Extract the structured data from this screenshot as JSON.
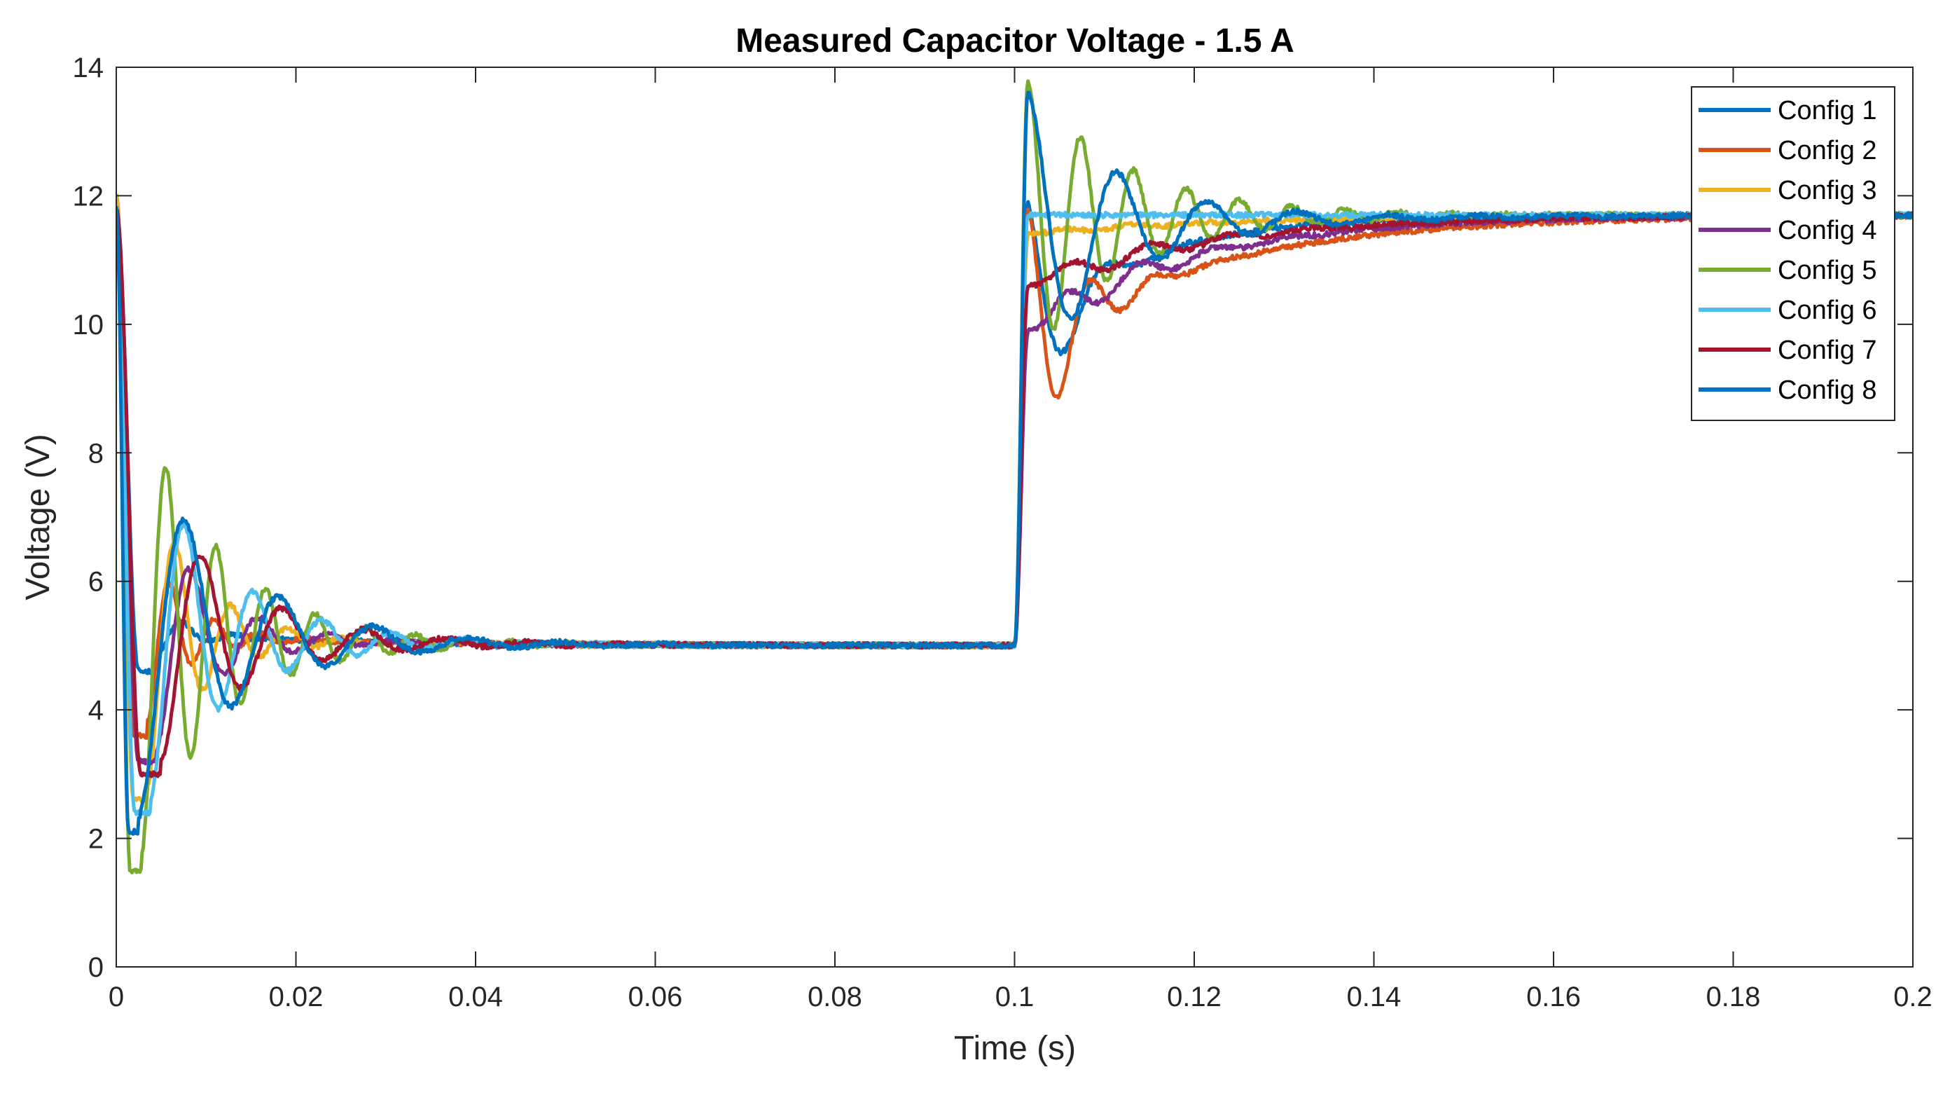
{
  "chart_data": {
    "type": "line",
    "title": "Measured Capacitor Voltage - 1.5 A",
    "xlabel": "Time (s)",
    "ylabel": "Voltage (V)",
    "xlim": [
      0,
      0.2
    ],
    "ylim": [
      0,
      14
    ],
    "xticks": [
      0,
      0.02,
      0.04,
      0.06,
      0.08,
      0.1,
      0.12,
      0.14,
      0.16,
      0.18,
      0.2
    ],
    "xtick_labels": [
      "0",
      "0.02",
      "0.04",
      "0.06",
      "0.08",
      "0.1",
      "0.12",
      "0.14",
      "0.16",
      "0.18",
      "0.2"
    ],
    "yticks": [
      0,
      2,
      4,
      6,
      8,
      10,
      12,
      14
    ],
    "ytick_labels": [
      "0",
      "2",
      "4",
      "6",
      "8",
      "10",
      "12",
      "14"
    ],
    "grid": false,
    "legend_position": "top-right",
    "step_times": [
      0,
      0.1
    ],
    "series": [
      {
        "name": "Config 1",
        "color": "#0072BD",
        "initial": 11.8,
        "low_level": 5.0,
        "high_level": 11.7,
        "dip_min": 4.6,
        "dip_time": 0.0045,
        "dip_ring_freq": 170,
        "dip_damping": 260,
        "rise_peak": 11.9,
        "rise_ring_freq": 110,
        "rise_damping": 200,
        "rise_tau": 0.012
      },
      {
        "name": "Config 2",
        "color": "#D95319",
        "initial": 12.0,
        "low_level": 5.0,
        "high_level": 11.7,
        "dip_min": 3.6,
        "dip_time": 0.0035,
        "dip_ring_freq": 200,
        "dip_damping": 230,
        "rise_peak": 11.8,
        "rise_ring_freq": 140,
        "rise_damping": 170,
        "rise_tau": 0.02
      },
      {
        "name": "Config 3",
        "color": "#EDB120",
        "initial": 12.0,
        "low_level": 5.0,
        "high_level": 11.7,
        "dip_min": 2.6,
        "dip_time": 0.0035,
        "dip_ring_freq": 160,
        "dip_damping": 170,
        "rise_peak": 11.4,
        "rise_ring_freq": 130,
        "rise_damping": 150,
        "rise_tau": 0.022
      },
      {
        "name": "Config 4",
        "color": "#7E2F8E",
        "initial": 11.8,
        "low_level": 5.0,
        "high_level": 11.7,
        "dip_min": 3.2,
        "dip_time": 0.0045,
        "dip_ring_freq": 130,
        "dip_damping": 150,
        "rise_peak": 9.9,
        "rise_ring_freq": 120,
        "rise_damping": 140,
        "rise_tau": 0.018
      },
      {
        "name": "Config 5",
        "color": "#77AC30",
        "initial": 11.8,
        "low_level": 5.0,
        "high_level": 11.7,
        "dip_min": 1.5,
        "dip_time": 0.0028,
        "dip_ring_freq": 180,
        "dip_damping": 110,
        "rise_peak": 13.8,
        "rise_ring_freq": 170,
        "rise_damping": 90,
        "rise_tau": 0.015
      },
      {
        "name": "Config 6",
        "color": "#4DBEEE",
        "initial": 11.6,
        "low_level": 5.0,
        "high_level": 11.7,
        "dip_min": 2.4,
        "dip_time": 0.0038,
        "dip_ring_freq": 130,
        "dip_damping": 110,
        "rise_peak": 11.7,
        "rise_ring_freq": 110,
        "rise_damping": 105,
        "rise_tau": 0.016
      },
      {
        "name": "Config 7",
        "color": "#A2142F",
        "initial": 11.8,
        "low_level": 5.0,
        "high_level": 11.7,
        "dip_min": 3.0,
        "dip_time": 0.005,
        "dip_ring_freq": 110,
        "dip_damping": 105,
        "rise_peak": 10.6,
        "rise_ring_freq": 110,
        "rise_damping": 115,
        "rise_tau": 0.02
      },
      {
        "name": "Config 8",
        "color": "#0072BD",
        "initial": 11.8,
        "low_level": 5.0,
        "high_level": 11.7,
        "dip_min": 2.1,
        "dip_time": 0.0025,
        "dip_ring_freq": 95,
        "dip_damping": 95,
        "rise_peak": 13.6,
        "rise_ring_freq": 100,
        "rise_damping": 90,
        "rise_tau": 0.022
      }
    ]
  }
}
